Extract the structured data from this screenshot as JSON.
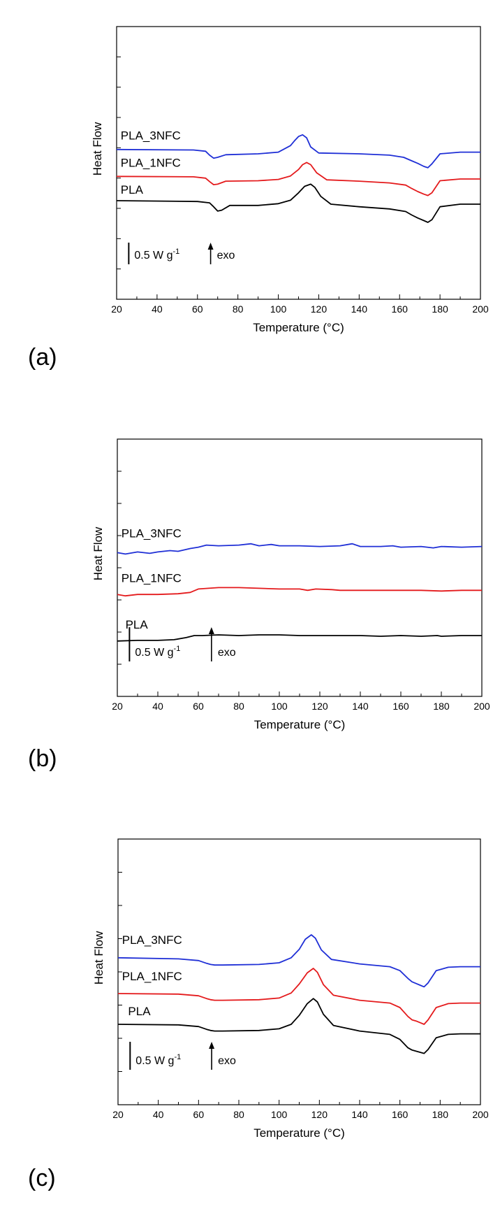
{
  "chart_data": [
    {
      "id": "a",
      "panel_label": "(a)",
      "type": "line",
      "xlabel": "Temperature (°C)",
      "ylabel": "Heat Flow",
      "xlim": [
        20,
        200
      ],
      "xticks": [
        20,
        40,
        60,
        80,
        100,
        120,
        140,
        160,
        180,
        200
      ],
      "scale_bar_label": "0.5 W g",
      "scale_bar_sup": "-1",
      "arrow_label": "exo",
      "series": [
        {
          "name": "PLA",
          "color": "#000000",
          "label_x": 22,
          "label_y": 0.0,
          "x": [
            20,
            60,
            66,
            68,
            70,
            72,
            76,
            90,
            100,
            106,
            110,
            113,
            116,
            118,
            121,
            126,
            140,
            155,
            163,
            166,
            169,
            172,
            174,
            176,
            180,
            190,
            200
          ],
          "y": [
            0.0,
            -0.02,
            -0.05,
            -0.14,
            -0.24,
            -0.22,
            -0.11,
            -0.11,
            -0.07,
            0.01,
            0.18,
            0.33,
            0.38,
            0.31,
            0.1,
            -0.08,
            -0.14,
            -0.19,
            -0.25,
            -0.33,
            -0.4,
            -0.46,
            -0.5,
            -0.44,
            -0.14,
            -0.08,
            -0.08
          ],
          "level": 0.0
        },
        {
          "name": "PLA_1NFC",
          "color": "#e41a1c",
          "label_x": 22,
          "label_y": 0.62,
          "x": [
            20,
            58,
            64,
            66,
            68,
            70,
            74,
            90,
            100,
            106,
            110,
            112,
            114,
            116,
            119,
            124,
            140,
            155,
            163,
            166,
            169,
            172,
            174,
            176,
            180,
            190,
            200
          ],
          "y": [
            0.56,
            0.55,
            0.52,
            0.44,
            0.37,
            0.38,
            0.45,
            0.46,
            0.49,
            0.57,
            0.72,
            0.83,
            0.88,
            0.83,
            0.64,
            0.48,
            0.45,
            0.41,
            0.36,
            0.28,
            0.21,
            0.15,
            0.12,
            0.18,
            0.46,
            0.5,
            0.5
          ],
          "level": 0.56
        },
        {
          "name": "PLA_3NFC",
          "color": "#1f2fd6",
          "label_x": 22,
          "label_y": 1.25,
          "x": [
            20,
            58,
            64,
            66,
            68,
            70,
            74,
            90,
            100,
            106,
            108,
            110,
            112,
            114,
            116,
            120,
            140,
            155,
            162,
            166,
            169,
            172,
            174,
            176,
            180,
            190,
            200
          ],
          "y": [
            1.18,
            1.17,
            1.14,
            1.05,
            0.98,
            1.0,
            1.06,
            1.08,
            1.12,
            1.27,
            1.38,
            1.48,
            1.52,
            1.45,
            1.24,
            1.1,
            1.08,
            1.05,
            1.0,
            0.92,
            0.86,
            0.79,
            0.76,
            0.85,
            1.08,
            1.12,
            1.12
          ],
          "level": 1.18
        }
      ]
    },
    {
      "id": "b",
      "panel_label": "(b)",
      "type": "line",
      "xlabel": "Temperature (°C)",
      "ylabel": "Heat Flow",
      "xlim": [
        20,
        200
      ],
      "xticks": [
        20,
        40,
        60,
        80,
        100,
        120,
        140,
        160,
        180,
        200
      ],
      "scale_bar_label": "0.5 W g",
      "scale_bar_sup": "-1",
      "arrow_label": "exo",
      "series": [
        {
          "name": "PLA",
          "color": "#000000",
          "label_x": 24,
          "label_y": 0.0,
          "x": [
            20,
            30,
            40,
            48,
            54,
            58,
            62,
            70,
            80,
            90,
            100,
            110,
            120,
            130,
            140,
            150,
            160,
            170,
            178,
            180,
            190,
            200
          ],
          "y": [
            -0.08,
            -0.07,
            -0.07,
            -0.06,
            -0.03,
            0.0,
            0.0,
            0.01,
            0.0,
            0.01,
            0.01,
            0.0,
            0.0,
            0.0,
            0.0,
            -0.01,
            0.0,
            -0.01,
            0.0,
            -0.01,
            0.0,
            0.0
          ],
          "level": 0.0
        },
        {
          "name": "PLA_1NFC",
          "color": "#e41a1c",
          "label_x": 22,
          "label_y": 0.68,
          "x": [
            20,
            24,
            30,
            40,
            50,
            56,
            60,
            70,
            80,
            90,
            100,
            110,
            114,
            118,
            126,
            130,
            140,
            150,
            160,
            170,
            180,
            190,
            200
          ],
          "y": [
            0.6,
            0.58,
            0.6,
            0.6,
            0.61,
            0.63,
            0.68,
            0.7,
            0.7,
            0.69,
            0.68,
            0.68,
            0.66,
            0.68,
            0.67,
            0.66,
            0.66,
            0.66,
            0.66,
            0.66,
            0.65,
            0.66,
            0.66
          ],
          "level": 0.6
        },
        {
          "name": "PLA_3NFC",
          "color": "#1f2fd6",
          "label_x": 22,
          "label_y": 1.33,
          "x": [
            20,
            24,
            30,
            36,
            40,
            46,
            50,
            56,
            60,
            64,
            70,
            80,
            86,
            90,
            96,
            100,
            110,
            120,
            130,
            136,
            140,
            150,
            156,
            160,
            170,
            176,
            180,
            190,
            200
          ],
          "y": [
            1.21,
            1.19,
            1.22,
            1.2,
            1.22,
            1.24,
            1.23,
            1.27,
            1.29,
            1.32,
            1.31,
            1.32,
            1.34,
            1.31,
            1.33,
            1.31,
            1.31,
            1.3,
            1.31,
            1.34,
            1.3,
            1.3,
            1.31,
            1.29,
            1.3,
            1.28,
            1.3,
            1.29,
            1.3
          ],
          "level": 1.21
        }
      ]
    },
    {
      "id": "c",
      "panel_label": "(c)",
      "type": "line",
      "xlabel": "Temperature (°C)",
      "ylabel": "Heat Flow",
      "xlim": [
        20,
        200
      ],
      "xticks": [
        20,
        40,
        60,
        80,
        100,
        120,
        140,
        160,
        180,
        200
      ],
      "scale_bar_label": "0.5 W g",
      "scale_bar_sup": "-1",
      "arrow_label": "exo",
      "series": [
        {
          "name": "PLA",
          "color": "#000000",
          "label_x": 25,
          "label_y": 0.04,
          "x": [
            20,
            50,
            60,
            64,
            66,
            68,
            72,
            90,
            100,
            106,
            110,
            114,
            117,
            119,
            122,
            127,
            140,
            155,
            160,
            164,
            166,
            168,
            170,
            172,
            174,
            178,
            184,
            190,
            200
          ],
          "y": [
            0.0,
            -0.01,
            -0.04,
            -0.09,
            -0.11,
            -0.12,
            -0.12,
            -0.11,
            -0.08,
            0.0,
            0.16,
            0.37,
            0.46,
            0.4,
            0.18,
            -0.02,
            -0.12,
            -0.18,
            -0.27,
            -0.42,
            -0.46,
            -0.48,
            -0.5,
            -0.52,
            -0.45,
            -0.24,
            -0.18,
            -0.17,
            -0.17
          ],
          "level": 0.0
        },
        {
          "name": "PLA_1NFC",
          "color": "#e41a1c",
          "label_x": 22,
          "label_y": 0.66,
          "x": [
            20,
            50,
            60,
            64,
            66,
            68,
            72,
            90,
            100,
            106,
            110,
            114,
            117,
            119,
            122,
            127,
            140,
            155,
            160,
            164,
            166,
            168,
            170,
            172,
            174,
            178,
            184,
            190,
            200
          ],
          "y": [
            0.55,
            0.54,
            0.51,
            0.46,
            0.44,
            0.43,
            0.43,
            0.44,
            0.47,
            0.56,
            0.72,
            0.92,
            1.0,
            0.93,
            0.71,
            0.52,
            0.43,
            0.38,
            0.3,
            0.14,
            0.08,
            0.06,
            0.03,
            0.0,
            0.08,
            0.3,
            0.37,
            0.38,
            0.38
          ],
          "level": 0.55
        },
        {
          "name": "PLA_3NFC",
          "color": "#1f2fd6",
          "label_x": 22,
          "label_y": 1.31,
          "x": [
            20,
            50,
            60,
            64,
            66,
            68,
            72,
            90,
            100,
            106,
            110,
            113,
            116,
            118,
            121,
            126,
            140,
            155,
            160,
            164,
            166,
            168,
            170,
            172,
            174,
            178,
            184,
            190,
            200
          ],
          "y": [
            1.19,
            1.17,
            1.14,
            1.09,
            1.07,
            1.06,
            1.06,
            1.07,
            1.1,
            1.19,
            1.34,
            1.52,
            1.6,
            1.54,
            1.33,
            1.16,
            1.08,
            1.03,
            0.96,
            0.82,
            0.76,
            0.73,
            0.7,
            0.67,
            0.74,
            0.96,
            1.02,
            1.03,
            1.03
          ],
          "level": 1.19
        }
      ]
    }
  ]
}
